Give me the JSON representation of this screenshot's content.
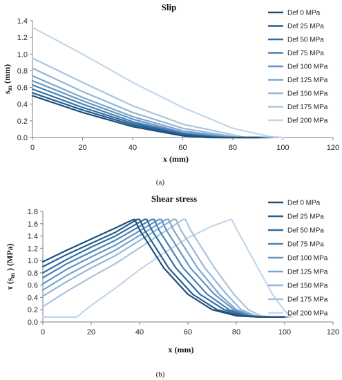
{
  "captions": [
    "(a)",
    "(b)"
  ],
  "chart_data": [
    {
      "type": "line",
      "title": "Slip",
      "xlabel": "x (mm)",
      "ylabel_main": "s",
      "ylabel_sub": "m",
      "ylabel_unit": "(mm)",
      "xlim": [
        0,
        120
      ],
      "ylim": [
        0,
        1.4
      ],
      "xticks": [
        "0",
        "20",
        "40",
        "60",
        "80",
        "100",
        "120"
      ],
      "yticks": [
        "0.0",
        "0.2",
        "0.4",
        "0.6",
        "0.8",
        "1.0",
        "1.2",
        "1.4"
      ],
      "grid": false,
      "legend_position": "right",
      "series": [
        {
          "name": "Def  0 MPa",
          "color": "#1f4e79",
          "points": [
            [
              0,
              0.5
            ],
            [
              20,
              0.3
            ],
            [
              40,
              0.13
            ],
            [
              60,
              0.02
            ],
            [
              70,
              0.0
            ],
            [
              90,
              0.0
            ]
          ]
        },
        {
          "name": "Def  25 MPa",
          "color": "#235d8e",
          "points": [
            [
              0,
              0.535
            ],
            [
              20,
              0.33
            ],
            [
              40,
              0.15
            ],
            [
              60,
              0.03
            ],
            [
              72,
              0.0
            ],
            [
              91,
              0.0
            ]
          ]
        },
        {
          "name": "Def  50 MPa",
          "color": "#2e6da4",
          "points": [
            [
              0,
              0.58
            ],
            [
              20,
              0.36
            ],
            [
              40,
              0.17
            ],
            [
              60,
              0.04
            ],
            [
              74,
              0.0
            ],
            [
              92,
              0.0
            ]
          ]
        },
        {
          "name": "Def  75 MPa",
          "color": "#4a81b3",
          "points": [
            [
              0,
              0.63
            ],
            [
              20,
              0.4
            ],
            [
              40,
              0.19
            ],
            [
              60,
              0.05
            ],
            [
              76,
              0.0
            ],
            [
              93,
              0.0
            ]
          ]
        },
        {
          "name": "Def  100 MPa",
          "color": "#6394c2",
          "points": [
            [
              0,
              0.68
            ],
            [
              20,
              0.44
            ],
            [
              40,
              0.22
            ],
            [
              60,
              0.06
            ],
            [
              78,
              0.0
            ],
            [
              94,
              0.0
            ]
          ]
        },
        {
          "name": "Def  125 MPa",
          "color": "#7ba5cd",
          "points": [
            [
              0,
              0.74
            ],
            [
              20,
              0.48
            ],
            [
              40,
              0.25
            ],
            [
              60,
              0.08
            ],
            [
              80,
              0.0
            ],
            [
              95,
              0.0
            ]
          ]
        },
        {
          "name": "Def  150 MPa",
          "color": "#93b6d6",
          "points": [
            [
              0,
              0.83
            ],
            [
              20,
              0.55
            ],
            [
              40,
              0.3
            ],
            [
              60,
              0.11
            ],
            [
              82,
              0.0
            ],
            [
              96,
              0.0
            ]
          ]
        },
        {
          "name": "Def  175 MPa",
          "color": "#a9c5de",
          "points": [
            [
              0,
              0.95
            ],
            [
              20,
              0.66
            ],
            [
              40,
              0.38
            ],
            [
              60,
              0.16
            ],
            [
              85,
              0.0
            ],
            [
              98,
              0.0
            ]
          ]
        },
        {
          "name": "Def  200 MPa",
          "color": "#c3d6ea",
          "points": [
            [
              0,
              1.32
            ],
            [
              20,
              1.0
            ],
            [
              40,
              0.66
            ],
            [
              60,
              0.36
            ],
            [
              80,
              0.11
            ],
            [
              95,
              0.01
            ],
            [
              100,
              0.0
            ]
          ]
        }
      ]
    },
    {
      "type": "line",
      "title": "Shear stress",
      "xlabel": "x (mm)",
      "ylabel_main": "τ (s",
      "ylabel_sub": "m",
      "ylabel_unit": ") (MPa)",
      "xlim": [
        0,
        120
      ],
      "ylim": [
        0,
        1.8
      ],
      "xticks": [
        "0",
        "20",
        "40",
        "60",
        "80",
        "100",
        "120"
      ],
      "yticks": [
        "0.0",
        "0.2",
        "0.4",
        "0.6",
        "0.8",
        "1.0",
        "1.2",
        "1.4",
        "1.6",
        "1.8"
      ],
      "grid": false,
      "legend_position": "right",
      "series": [
        {
          "name": "Def  0 MPa",
          "color": "#1f4e79",
          "points": [
            [
              0,
              0.98
            ],
            [
              10,
              1.17
            ],
            [
              20,
              1.35
            ],
            [
              30,
              1.53
            ],
            [
              37,
              1.66
            ],
            [
              38,
              1.67
            ],
            [
              40,
              1.5
            ],
            [
              50,
              0.88
            ],
            [
              60,
              0.45
            ],
            [
              70,
              0.2
            ],
            [
              80,
              0.1
            ],
            [
              90,
              0.08
            ],
            [
              100,
              0.08
            ]
          ]
        },
        {
          "name": "Def  25 MPa",
          "color": "#235d8e",
          "points": [
            [
              0,
              0.9
            ],
            [
              10,
              1.1
            ],
            [
              20,
              1.28
            ],
            [
              30,
              1.46
            ],
            [
              39,
              1.67
            ],
            [
              40,
              1.67
            ],
            [
              42,
              1.5
            ],
            [
              52,
              0.88
            ],
            [
              62,
              0.45
            ],
            [
              72,
              0.2
            ],
            [
              82,
              0.1
            ],
            [
              90,
              0.08
            ],
            [
              100,
              0.08
            ]
          ]
        },
        {
          "name": "Def  50 MPa",
          "color": "#2e6da4",
          "points": [
            [
              0,
              0.8
            ],
            [
              10,
              1.02
            ],
            [
              20,
              1.22
            ],
            [
              30,
              1.4
            ],
            [
              42,
              1.67
            ],
            [
              43,
              1.67
            ],
            [
              45,
              1.5
            ],
            [
              55,
              0.88
            ],
            [
              65,
              0.45
            ],
            [
              75,
              0.2
            ],
            [
              84,
              0.1
            ],
            [
              90,
              0.08
            ],
            [
              100,
              0.08
            ]
          ]
        },
        {
          "name": "Def  75 MPa",
          "color": "#4a81b3",
          "points": [
            [
              0,
              0.72
            ],
            [
              10,
              0.95
            ],
            [
              20,
              1.14
            ],
            [
              30,
              1.33
            ],
            [
              45,
              1.67
            ],
            [
              46,
              1.67
            ],
            [
              48,
              1.5
            ],
            [
              58,
              0.88
            ],
            [
              68,
              0.45
            ],
            [
              77,
              0.2
            ],
            [
              85,
              0.1
            ],
            [
              90,
              0.08
            ],
            [
              100,
              0.08
            ]
          ]
        },
        {
          "name": "Def  100 MPa",
          "color": "#6394c2",
          "points": [
            [
              0,
              0.62
            ],
            [
              10,
              0.86
            ],
            [
              20,
              1.06
            ],
            [
              30,
              1.25
            ],
            [
              48,
              1.67
            ],
            [
              49,
              1.67
            ],
            [
              51,
              1.5
            ],
            [
              61,
              0.88
            ],
            [
              71,
              0.45
            ],
            [
              79,
              0.2
            ],
            [
              86,
              0.1
            ],
            [
              92,
              0.08
            ],
            [
              100,
              0.08
            ]
          ]
        },
        {
          "name": "Def  125 MPa",
          "color": "#7ba5cd",
          "points": [
            [
              0,
              0.52
            ],
            [
              10,
              0.76
            ],
            [
              20,
              0.97
            ],
            [
              30,
              1.17
            ],
            [
              51,
              1.67
            ],
            [
              52,
              1.67
            ],
            [
              54,
              1.5
            ],
            [
              64,
              0.88
            ],
            [
              73,
              0.45
            ],
            [
              80,
              0.2
            ],
            [
              87,
              0.1
            ],
            [
              93,
              0.08
            ],
            [
              101,
              0.08
            ]
          ]
        },
        {
          "name": "Def  150 MPa",
          "color": "#93b6d6",
          "points": [
            [
              0,
              0.42
            ],
            [
              10,
              0.66
            ],
            [
              20,
              0.88
            ],
            [
              30,
              1.08
            ],
            [
              54,
              1.67
            ],
            [
              55,
              1.67
            ],
            [
              57,
              1.5
            ],
            [
              67,
              0.88
            ],
            [
              76,
              0.45
            ],
            [
              82,
              0.2
            ],
            [
              88,
              0.1
            ],
            [
              94,
              0.08
            ],
            [
              101,
              0.08
            ]
          ]
        },
        {
          "name": "Def  175 MPa",
          "color": "#a9c5de",
          "points": [
            [
              0,
              0.25
            ],
            [
              10,
              0.5
            ],
            [
              20,
              0.73
            ],
            [
              30,
              0.95
            ],
            [
              58,
              1.67
            ],
            [
              59,
              1.67
            ],
            [
              61,
              1.5
            ],
            [
              71,
              0.88
            ],
            [
              79,
              0.45
            ],
            [
              85,
              0.2
            ],
            [
              90,
              0.1
            ],
            [
              96,
              0.08
            ],
            [
              102,
              0.08
            ]
          ]
        },
        {
          "name": "Def  200 MPa",
          "color": "#c3d6ea",
          "points": [
            [
              0,
              0.08
            ],
            [
              14,
              0.08
            ],
            [
              20,
              0.27
            ],
            [
              30,
              0.55
            ],
            [
              40,
              0.85
            ],
            [
              50,
              1.12
            ],
            [
              60,
              1.37
            ],
            [
              70,
              1.56
            ],
            [
              77,
              1.66
            ],
            [
              78,
              1.67
            ],
            [
              81,
              1.45
            ],
            [
              88,
              0.95
            ],
            [
              95,
              0.45
            ],
            [
              100,
              0.18
            ],
            [
              103,
              0.08
            ]
          ]
        }
      ]
    }
  ]
}
